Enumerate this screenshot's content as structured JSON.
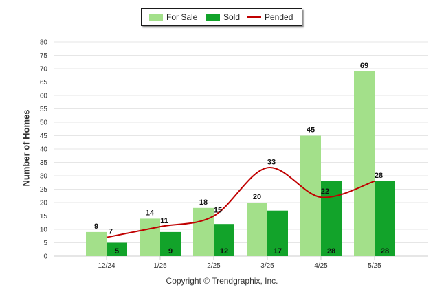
{
  "legend": {
    "for_sale": "For Sale",
    "sold": "Sold",
    "pended": "Pended"
  },
  "footer": {
    "copyright": "Copyright © Trendgraphix, Inc."
  },
  "colors": {
    "for_sale": "#a3e08a",
    "sold": "#12a32a",
    "pended": "#c00000",
    "grid": "#e6e6e6"
  },
  "chart_data": {
    "type": "bar",
    "title": "",
    "xlabel": "",
    "ylabel": "Number of Homes",
    "ylim": [
      0,
      80
    ],
    "yticks": [
      0,
      5,
      10,
      15,
      20,
      25,
      30,
      35,
      40,
      45,
      50,
      55,
      60,
      65,
      70,
      75,
      80
    ],
    "grid": true,
    "legend_position": "top-center",
    "categories": [
      "12/24",
      "1/25",
      "2/25",
      "3/25",
      "4/25",
      "5/25"
    ],
    "series": [
      {
        "name": "For Sale",
        "type": "bar",
        "values": [
          9,
          14,
          18,
          20,
          45,
          69
        ]
      },
      {
        "name": "Sold",
        "type": "bar",
        "values": [
          5,
          9,
          12,
          17,
          28,
          28
        ]
      },
      {
        "name": "Pended",
        "type": "line",
        "values": [
          7,
          11,
          15,
          33,
          22,
          28
        ]
      }
    ]
  }
}
